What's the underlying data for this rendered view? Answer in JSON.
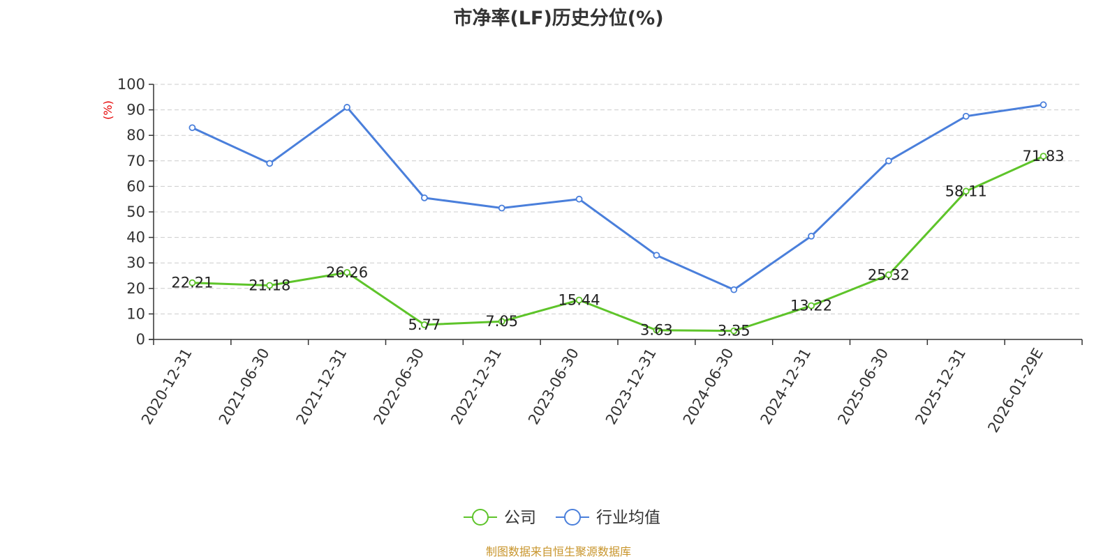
{
  "chart_data": {
    "type": "line",
    "title": "市净率(LF)历史分位(%)",
    "ylabel": "(%)",
    "ylim": [
      0,
      100
    ],
    "yticks": [
      0,
      10,
      20,
      30,
      40,
      50,
      60,
      70,
      80,
      90,
      100
    ],
    "grid": true,
    "legend_position": "bottom",
    "categories": [
      "2020-12-31",
      "2021-06-30",
      "2021-12-31",
      "2022-06-30",
      "2022-12-31",
      "2023-06-30",
      "2023-12-31",
      "2024-06-30",
      "2024-12-31",
      "2025-06-30",
      "2025-12-31",
      "2026-01-29E"
    ],
    "series": [
      {
        "name": "公司",
        "color": "#5ec42a",
        "show_labels": true,
        "values": [
          22.21,
          21.18,
          26.26,
          5.77,
          7.05,
          15.44,
          3.63,
          3.35,
          13.22,
          25.32,
          58.11,
          71.83
        ]
      },
      {
        "name": "行业均值",
        "color": "#4a7fdb",
        "show_labels": false,
        "values": [
          83,
          69,
          91,
          55.5,
          51.5,
          55,
          33,
          19.5,
          40.5,
          70,
          87.5,
          92
        ]
      }
    ]
  },
  "footer": {
    "source": "制图数据来自恒生聚源数据库"
  }
}
